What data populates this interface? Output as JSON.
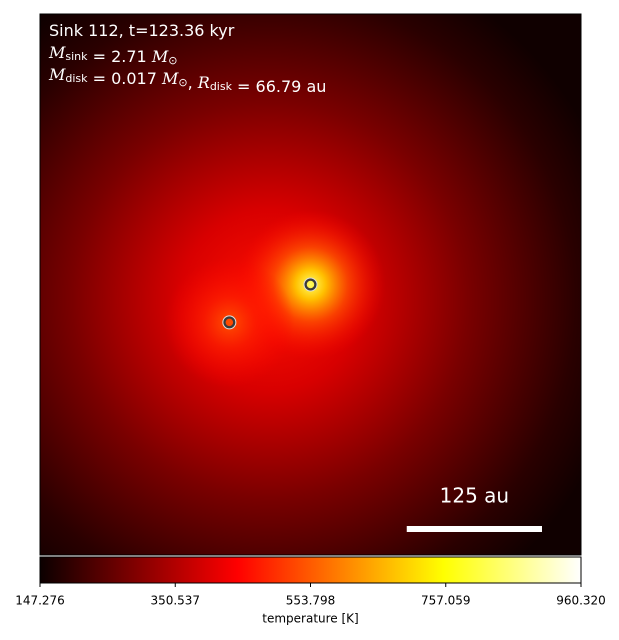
{
  "chart_data": {
    "type": "image",
    "colormap": "hot",
    "annotations": [
      [
        {
          "text": "Sink 112, t=123.36 kyr"
        }
      ],
      [
        {
          "text": "M",
          "sub": "sink"
        },
        {
          "text": " = 2.71 "
        },
        {
          "text": "M",
          "sub": "⊙"
        }
      ],
      [
        {
          "text": "M",
          "sub": "disk"
        },
        {
          "text": " = 0.017 "
        },
        {
          "text": "M",
          "sub": "⊙"
        },
        {
          "text": ", "
        },
        {
          "text": "R",
          "sub": "disk"
        },
        {
          "text": " = 66.79 au"
        }
      ]
    ],
    "xlim": [
      -250,
      250
    ],
    "ylim": [
      -250,
      250
    ],
    "sinks": {
      "x": [
        0,
        -75
      ],
      "y": [
        0,
        -35
      ]
    },
    "scalebar": {
      "label": "125 au",
      "length": 125
    },
    "colorbar": {
      "label": "temperature [K]",
      "clim": [
        147.276,
        960.32
      ],
      "ticks": [
        147.276,
        350.537,
        553.798,
        757.059,
        {
          "value": 960.32,
          "label": "960.320"
        }
      ]
    }
  }
}
